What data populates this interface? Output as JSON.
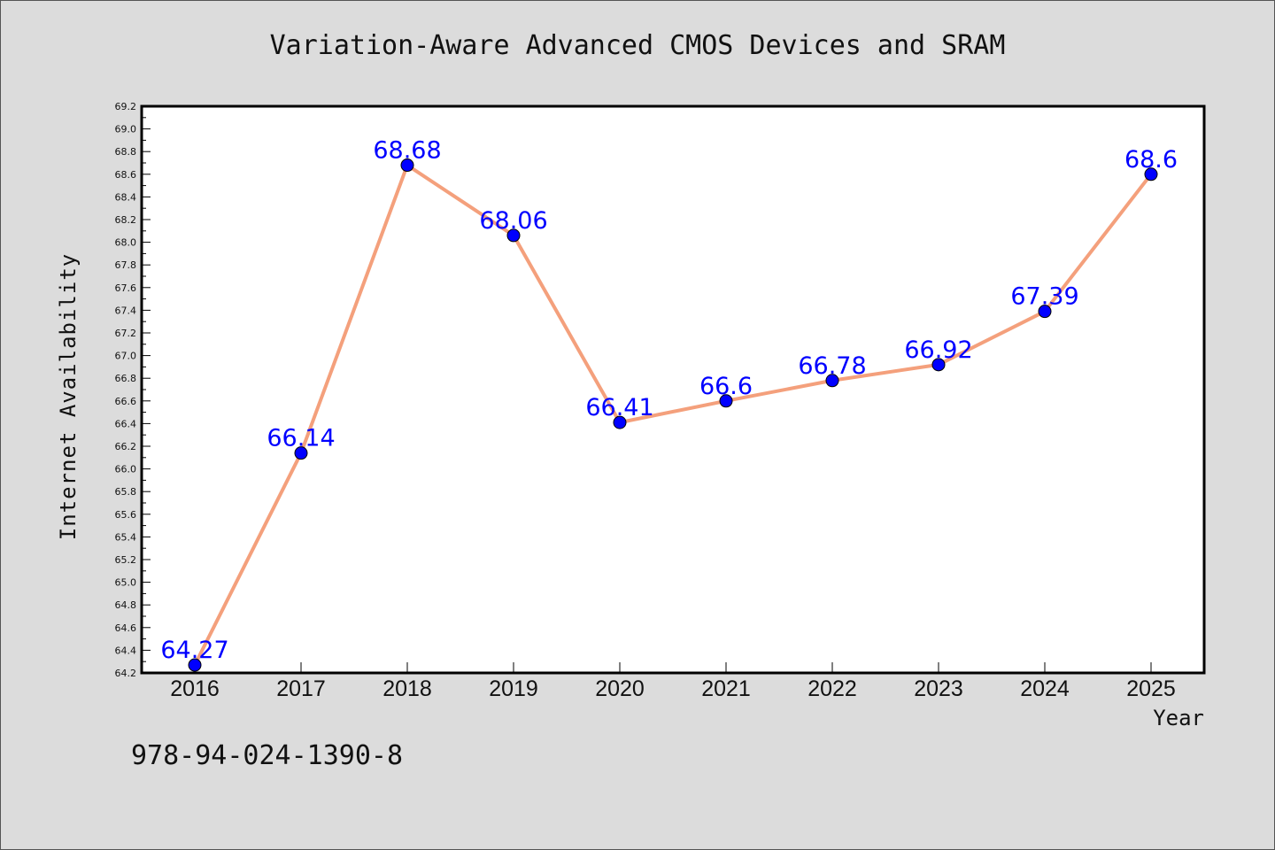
{
  "chart_data": {
    "type": "line",
    "title": "Variation-Aware Advanced CMOS Devices and SRAM",
    "xlabel": "Year",
    "ylabel": "Internet Availability",
    "categories": [
      "2016",
      "2017",
      "2018",
      "2019",
      "2020",
      "2021",
      "2022",
      "2023",
      "2024",
      "2025"
    ],
    "series": [
      {
        "values": [
          64.27,
          66.14,
          68.68,
          68.06,
          66.41,
          66.6,
          66.78,
          66.92,
          67.39,
          68.6
        ],
        "data_labels": [
          "64.27",
          "66.14",
          "68.68",
          "68.06",
          "66.41",
          "66.6",
          "66.78",
          "66.92",
          "67.39",
          "68.6"
        ]
      }
    ],
    "ylim": [
      64.2,
      69.2
    ],
    "yticks": [
      "64.2",
      "64.4",
      "64.6",
      "64.8",
      "65.0",
      "65.2",
      "65.4",
      "65.6",
      "65.8",
      "66.0",
      "66.2",
      "66.4",
      "66.6",
      "66.8",
      "67.0",
      "67.2",
      "67.4",
      "67.6",
      "67.8",
      "68.0",
      "68.2",
      "68.4",
      "68.6",
      "68.8",
      "69.0",
      "69.2"
    ],
    "grid": false,
    "legend": "none",
    "colors": {
      "line": "#f4a07c",
      "marker": "#0000ff",
      "label": "#0000ff",
      "background": "#dcdcdc",
      "plot_background": "#ffffff"
    }
  },
  "footer": {
    "isbn": "978-94-024-1390-8"
  }
}
